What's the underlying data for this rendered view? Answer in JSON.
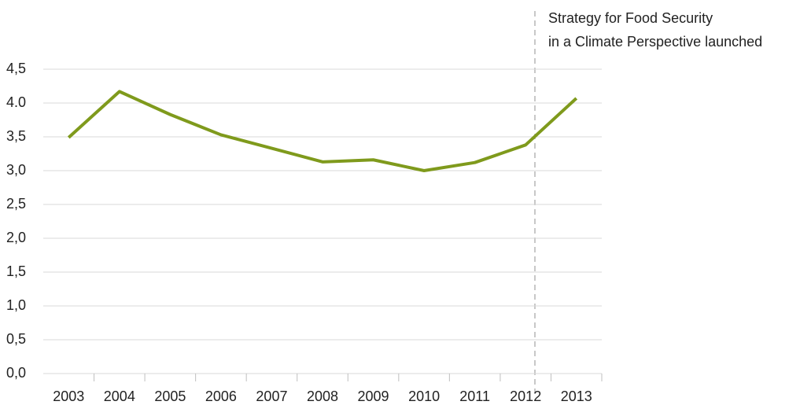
{
  "chart_data": {
    "type": "line",
    "annotation": [
      "Strategy for Food Security",
      "in a Climate Perspective launched"
    ],
    "categories": [
      "2003",
      "2004",
      "2005",
      "2006",
      "2007",
      "2008",
      "2009",
      "2010",
      "2011",
      "2012",
      "2013"
    ],
    "series": [
      {
        "color": "#7f9a1c",
        "values": [
          3.49,
          4.17,
          3.83,
          3.53,
          3.33,
          3.13,
          3.16,
          3.0,
          3.12,
          3.38,
          4.07
        ]
      }
    ],
    "ylim": [
      0,
      4.5
    ],
    "yticks": [
      {
        "value": 0,
        "label": "0,0"
      },
      {
        "value": 0.5,
        "label": "0,5"
      },
      {
        "value": 1,
        "label": "1,0"
      },
      {
        "value": 1.5,
        "label": "1,5"
      },
      {
        "value": 2,
        "label": "2,0"
      },
      {
        "value": 2.5,
        "label": "2,5"
      },
      {
        "value": 3,
        "label": "3,0"
      },
      {
        "value": 3.5,
        "label": "3,5"
      },
      {
        "value": 4,
        "label": "4.0"
      },
      {
        "value": 4.5,
        "label": "4,5"
      }
    ],
    "grid": true
  }
}
